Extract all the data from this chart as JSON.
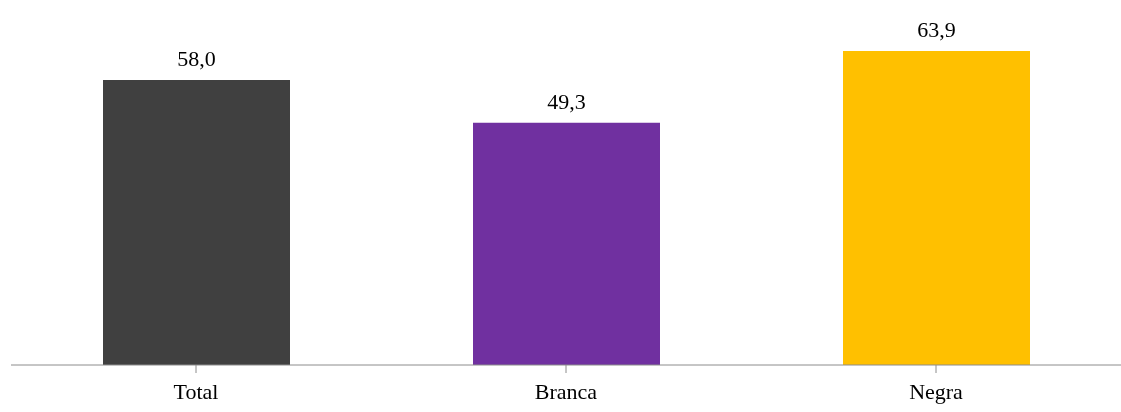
{
  "chart_data": {
    "type": "bar",
    "categories": [
      "Total",
      "Branca",
      "Negra"
    ],
    "values": [
      58.0,
      49.3,
      63.9
    ],
    "colors": [
      "#404040",
      "#7030a0",
      "#ffc000"
    ],
    "value_labels": [
      "58,0",
      "49,3",
      "63,9"
    ],
    "grid": false
  }
}
